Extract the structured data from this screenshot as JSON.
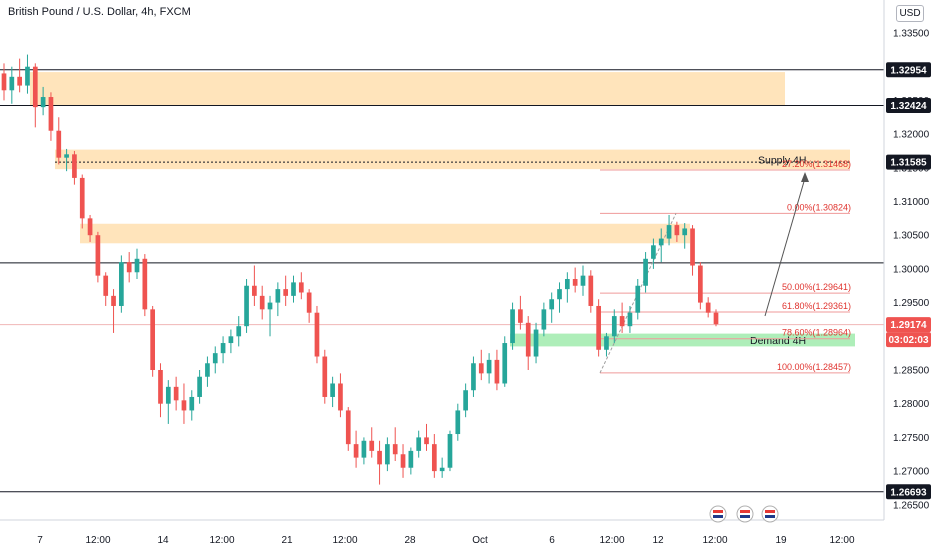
{
  "chart_data": {
    "type": "candlestick",
    "title": "British Pound / U.S. Dollar, 4h, FXCM",
    "currency_label": "USD",
    "ylim": [
      1.2645,
      1.3383
    ],
    "y_ticks": [
      "1.33500",
      "1.33000",
      "1.32500",
      "1.32000",
      "1.31500",
      "1.31000",
      "1.30500",
      "1.30000",
      "1.29500",
      "1.29000",
      "1.28500",
      "1.28000",
      "1.27500",
      "1.27000",
      "1.26500"
    ],
    "x_ticks": [
      "7",
      "12:00",
      "14",
      "12:00",
      "21",
      "12:00",
      "28",
      "Oct",
      "6",
      "12:00",
      "12",
      "12:00",
      "19",
      "12:00"
    ],
    "price_tags": [
      {
        "label": "1.32954",
        "value": 1.32954,
        "style": "dark"
      },
      {
        "label": "1.32424",
        "value": 1.32424,
        "style": "dark"
      },
      {
        "label": "1.31585",
        "value": 1.31585,
        "style": "dark"
      },
      {
        "label": "1.29174",
        "value": 1.29174,
        "style": "red"
      },
      {
        "label": "03:02:03",
        "value": 1.2901,
        "style": "red"
      },
      {
        "label": "1.26693",
        "value": 1.26693,
        "style": "dark"
      }
    ],
    "zones": [
      {
        "name": "supply-zone-top",
        "from": 1.3243,
        "to": 1.3292,
        "label": ""
      },
      {
        "name": "supply-zone-4h",
        "from": 1.3148,
        "to": 1.3177,
        "label": "Supply 4H"
      },
      {
        "name": "supply-zone-mid",
        "from": 1.3038,
        "to": 1.3067,
        "label": ""
      },
      {
        "name": "demand-zone-4h",
        "from": 1.2885,
        "to": 1.2904,
        "label": "Demand 4H"
      }
    ],
    "horizontal_lines": [
      1.32954,
      1.32424,
      1.3009,
      1.26693
    ],
    "fib_levels": [
      {
        "label": "27.20%(1.31468)",
        "value": 1.31468
      },
      {
        "label": "0.00%(1.30824)",
        "value": 1.30824
      },
      {
        "label": "50.00%(1.29641)",
        "value": 1.29641
      },
      {
        "label": "61.80%(1.29361)",
        "value": 1.29361
      },
      {
        "label": "78.60%(1.28964)",
        "value": 1.28964
      },
      {
        "label": "100.00%(1.28457)",
        "value": 1.28457
      }
    ],
    "candles": [
      [
        1.329,
        1.3305,
        1.325,
        1.3265
      ],
      [
        1.3265,
        1.33,
        1.3245,
        1.3285
      ],
      [
        1.3285,
        1.3312,
        1.3262,
        1.3272
      ],
      [
        1.3272,
        1.3318,
        1.326,
        1.33
      ],
      [
        1.33,
        1.3305,
        1.321,
        1.324
      ],
      [
        1.324,
        1.327,
        1.3228,
        1.3255
      ],
      [
        1.3255,
        1.3262,
        1.319,
        1.3205
      ],
      [
        1.3205,
        1.3225,
        1.3155,
        1.3165
      ],
      [
        1.3165,
        1.3178,
        1.3145,
        1.317
      ],
      [
        1.317,
        1.3175,
        1.3125,
        1.3135
      ],
      [
        1.3135,
        1.314,
        1.306,
        1.3075
      ],
      [
        1.3075,
        1.308,
        1.304,
        1.305
      ],
      [
        1.305,
        1.3055,
        1.298,
        1.299
      ],
      [
        1.299,
        1.2995,
        1.2945,
        1.296
      ],
      [
        1.296,
        1.297,
        1.2905,
        1.2945
      ],
      [
        1.2945,
        1.302,
        1.2935,
        1.301
      ],
      [
        1.301,
        1.3025,
        1.298,
        1.2995
      ],
      [
        1.2995,
        1.303,
        1.2985,
        1.3015
      ],
      [
        1.3015,
        1.3022,
        1.293,
        1.294
      ],
      [
        1.294,
        1.2945,
        1.284,
        1.285
      ],
      [
        1.285,
        1.286,
        1.278,
        1.28
      ],
      [
        1.28,
        1.2835,
        1.277,
        1.2825
      ],
      [
        1.2825,
        1.284,
        1.279,
        1.2805
      ],
      [
        1.2805,
        1.283,
        1.277,
        1.279
      ],
      [
        1.279,
        1.282,
        1.2775,
        1.281
      ],
      [
        1.281,
        1.285,
        1.28,
        1.284
      ],
      [
        1.284,
        1.287,
        1.2825,
        1.286
      ],
      [
        1.286,
        1.2885,
        1.2845,
        1.2875
      ],
      [
        1.2875,
        1.29,
        1.286,
        1.289
      ],
      [
        1.289,
        1.291,
        1.2875,
        1.29
      ],
      [
        1.29,
        1.293,
        1.2885,
        1.2915
      ],
      [
        1.2915,
        1.2985,
        1.2905,
        1.2975
      ],
      [
        1.2975,
        1.3005,
        1.2945,
        1.296
      ],
      [
        1.296,
        1.2975,
        1.2925,
        1.294
      ],
      [
        1.294,
        1.296,
        1.29,
        1.295
      ],
      [
        1.295,
        1.298,
        1.293,
        1.297
      ],
      [
        1.297,
        1.299,
        1.2945,
        1.296
      ],
      [
        1.296,
        1.299,
        1.295,
        1.298
      ],
      [
        1.298,
        1.2995,
        1.2955,
        1.2965
      ],
      [
        1.2965,
        1.297,
        1.292,
        1.2935
      ],
      [
        1.2935,
        1.2945,
        1.286,
        1.287
      ],
      [
        1.287,
        1.288,
        1.28,
        1.281
      ],
      [
        1.281,
        1.284,
        1.2795,
        1.283
      ],
      [
        1.283,
        1.2845,
        1.278,
        1.279
      ],
      [
        1.279,
        1.2795,
        1.273,
        1.274
      ],
      [
        1.274,
        1.276,
        1.2705,
        1.272
      ],
      [
        1.272,
        1.275,
        1.271,
        1.2745
      ],
      [
        1.2745,
        1.2765,
        1.272,
        1.273
      ],
      [
        1.273,
        1.2745,
        1.268,
        1.271
      ],
      [
        1.271,
        1.275,
        1.27,
        1.274
      ],
      [
        1.274,
        1.2765,
        1.2715,
        1.2725
      ],
      [
        1.2725,
        1.274,
        1.269,
        1.2705
      ],
      [
        1.2705,
        1.2735,
        1.2695,
        1.273
      ],
      [
        1.273,
        1.276,
        1.272,
        1.275
      ],
      [
        1.275,
        1.277,
        1.273,
        1.274
      ],
      [
        1.274,
        1.2755,
        1.269,
        1.27
      ],
      [
        1.27,
        1.272,
        1.269,
        1.2705
      ],
      [
        1.2705,
        1.276,
        1.27,
        1.2755
      ],
      [
        1.2755,
        1.28,
        1.2745,
        1.279
      ],
      [
        1.279,
        1.283,
        1.278,
        1.282
      ],
      [
        1.282,
        1.287,
        1.281,
        1.286
      ],
      [
        1.286,
        1.288,
        1.2835,
        1.2845
      ],
      [
        1.2845,
        1.2875,
        1.283,
        1.2865
      ],
      [
        1.2865,
        1.288,
        1.282,
        1.283
      ],
      [
        1.283,
        1.29,
        1.2825,
        1.289
      ],
      [
        1.289,
        1.295,
        1.288,
        1.294
      ],
      [
        1.294,
        1.296,
        1.291,
        1.292
      ],
      [
        1.292,
        1.293,
        1.285,
        1.287
      ],
      [
        1.287,
        1.292,
        1.286,
        1.291
      ],
      [
        1.291,
        1.295,
        1.29,
        1.294
      ],
      [
        1.294,
        1.2965,
        1.292,
        1.2955
      ],
      [
        1.2955,
        1.298,
        1.2935,
        1.297
      ],
      [
        1.297,
        1.2995,
        1.295,
        1.2985
      ],
      [
        1.2985,
        1.3002,
        1.2965,
        1.2975
      ],
      [
        1.2975,
        1.3005,
        1.296,
        1.299
      ],
      [
        1.299,
        1.2998,
        1.2935,
        1.2945
      ],
      [
        1.2945,
        1.2955,
        1.287,
        1.288
      ],
      [
        1.288,
        1.2905,
        1.287,
        1.29
      ],
      [
        1.29,
        1.294,
        1.289,
        1.293
      ],
      [
        1.293,
        1.295,
        1.2905,
        1.2915
      ],
      [
        1.2915,
        1.2945,
        1.2905,
        1.2935
      ],
      [
        1.2935,
        1.2985,
        1.2925,
        1.2975
      ],
      [
        1.2975,
        1.3025,
        1.2965,
        1.3015
      ],
      [
        1.3015,
        1.3045,
        1.3,
        1.3035
      ],
      [
        1.3035,
        1.306,
        1.301,
        1.3045
      ],
      [
        1.3045,
        1.308,
        1.3035,
        1.3065
      ],
      [
        1.3065,
        1.307,
        1.304,
        1.305
      ],
      [
        1.305,
        1.3068,
        1.303,
        1.306
      ],
      [
        1.306,
        1.3065,
        1.299,
        1.3005
      ],
      [
        1.3005,
        1.301,
        1.294,
        1.295
      ],
      [
        1.295,
        1.2958,
        1.2928,
        1.2935
      ],
      [
        1.2935,
        1.294,
        1.2915,
        1.2918
      ]
    ]
  }
}
